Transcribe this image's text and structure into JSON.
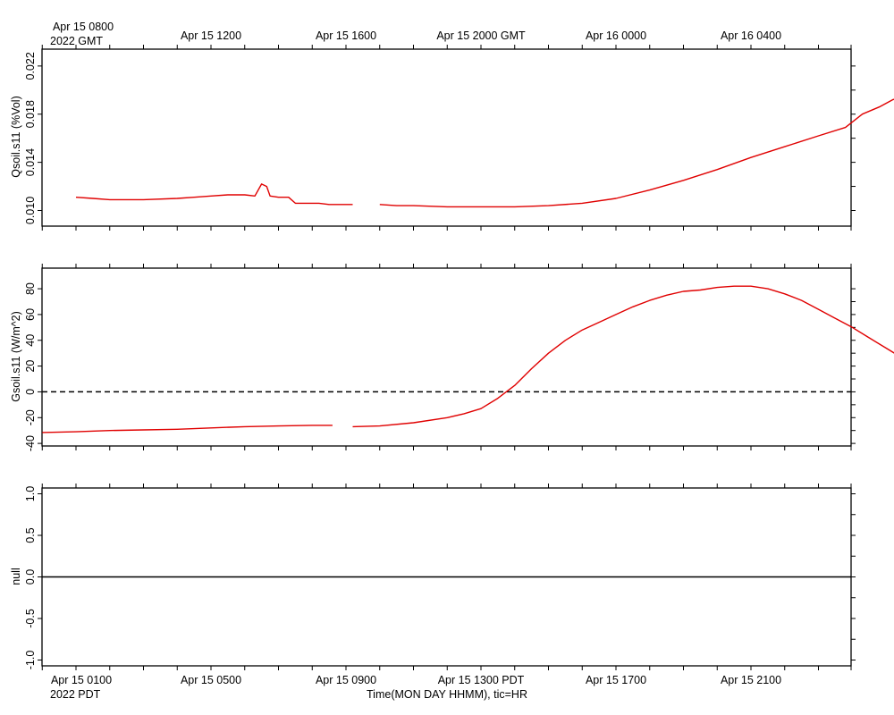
{
  "top_axis": {
    "tick_labels": [
      "Apr 15 0800",
      "Apr 15 1200",
      "Apr 15 1600",
      "Apr 15 2000 GMT",
      "Apr 16 0000",
      "Apr 16 0400"
    ],
    "corner_label": "2022 GMT"
  },
  "bottom_axis": {
    "tick_labels": [
      "Apr 15 0100",
      "Apr 15 0500",
      "Apr 15 0900",
      "Apr 15 1300 PDT",
      "Apr 15 1700",
      "Apr 15 2100"
    ],
    "corner_label": "2022 PDT",
    "title": "Time(MON DAY HHMM), tic=HR"
  },
  "colors": {
    "series": "#e00000",
    "axis": "#000000",
    "zero_line": "#000000"
  },
  "chart_data": [
    {
      "type": "line",
      "ylabel": "Qsoil.s11 (%Vol)",
      "ylim": [
        0.0087,
        0.0234
      ],
      "yticks": [
        0.01,
        0.014,
        0.018,
        0.022
      ],
      "ytick_labels": [
        "0.010",
        "0.014",
        "0.018",
        "0.022"
      ],
      "xlim_pdt_hours": [
        0.0,
        23.8
      ],
      "segments": [
        [
          [
            0.0,
            0.0111
          ],
          [
            0.5,
            0.011
          ],
          [
            1.0,
            0.0109
          ],
          [
            2.0,
            0.0109
          ],
          [
            3.0,
            0.011
          ],
          [
            3.5,
            0.0111
          ],
          [
            4.0,
            0.0112
          ],
          [
            4.5,
            0.0113
          ],
          [
            5.0,
            0.0113
          ],
          [
            5.3,
            0.0112
          ],
          [
            5.5,
            0.0122
          ],
          [
            5.65,
            0.012
          ],
          [
            5.75,
            0.0112
          ],
          [
            6.0,
            0.0111
          ],
          [
            6.3,
            0.0111
          ],
          [
            6.5,
            0.0106
          ],
          [
            7.0,
            0.0106
          ],
          [
            7.2,
            0.0106
          ],
          [
            7.5,
            0.0105
          ],
          [
            8.0,
            0.0105
          ],
          [
            8.2,
            0.0105
          ]
        ],
        [
          [
            9.0,
            0.0105
          ],
          [
            9.5,
            0.0104
          ],
          [
            10.0,
            0.0104
          ],
          [
            11.0,
            0.0103
          ],
          [
            12.0,
            0.0103
          ],
          [
            13.0,
            0.0103
          ],
          [
            14.0,
            0.0104
          ],
          [
            15.0,
            0.0106
          ],
          [
            16.0,
            0.011
          ],
          [
            17.0,
            0.0117
          ],
          [
            18.0,
            0.0125
          ],
          [
            19.0,
            0.0134
          ],
          [
            20.0,
            0.0144
          ],
          [
            21.0,
            0.0153
          ],
          [
            22.0,
            0.0162
          ],
          [
            22.8,
            0.0169
          ],
          [
            23.3,
            0.018
          ],
          [
            23.8,
            0.0186
          ],
          [
            24.2,
            0.0192
          ],
          [
            24.8,
            0.0197
          ],
          [
            25.1,
            0.02
          ],
          [
            25.4,
            0.0196
          ],
          [
            25.7,
            0.0205
          ],
          [
            25.9,
            0.0192
          ],
          [
            26.2,
            0.0208
          ],
          [
            26.5,
            0.0209
          ],
          [
            26.8,
            0.0209
          ],
          [
            27.0,
            0.0193
          ],
          [
            27.3,
            0.0189
          ],
          [
            27.6,
            0.0188
          ],
          [
            28.0,
            0.0189
          ],
          [
            28.6,
            0.0185
          ],
          [
            29.0,
            0.0187
          ],
          [
            29.3,
            0.0189
          ],
          [
            29.6,
            0.0195
          ],
          [
            29.75,
            0.0185
          ],
          [
            30.0,
            0.0197
          ],
          [
            30.5,
            0.0192
          ],
          [
            30.8,
            0.0185
          ],
          [
            31.4,
            0.0181
          ],
          [
            31.6,
            0.0187
          ],
          [
            31.75,
            0.0214
          ],
          [
            31.85,
            0.0152
          ],
          [
            32.0,
            0.02
          ],
          [
            32.15,
            0.0151
          ],
          [
            32.3,
            0.0164
          ],
          [
            32.45,
            0.0147
          ],
          [
            32.6,
            0.0213
          ],
          [
            32.75,
            0.0226
          ],
          [
            32.9,
            0.0138
          ],
          [
            33.2,
            0.0135
          ],
          [
            33.5,
            0.0138
          ],
          [
            33.7,
            0.0133
          ],
          [
            33.9,
            0.0145
          ],
          [
            34.05,
            0.0168
          ],
          [
            34.2,
            0.0158
          ],
          [
            34.35,
            0.0174
          ],
          [
            34.5,
            0.0168
          ],
          [
            34.6,
            0.0122
          ],
          [
            34.7,
            0.0117
          ],
          [
            35.0,
            0.0115
          ],
          [
            35.5,
            0.0114
          ],
          [
            36.0,
            0.0111
          ],
          [
            36.5,
            0.0109
          ],
          [
            37.0,
            0.0107
          ],
          [
            37.5,
            0.0106
          ],
          [
            38.0,
            0.0105
          ],
          [
            38.5,
            0.0103
          ],
          [
            38.6,
            0.0104
          ],
          [
            39.0,
            0.0103
          ],
          [
            39.5,
            0.0101
          ],
          [
            40.0,
            0.01
          ],
          [
            40.5,
            0.0099
          ],
          [
            41.0,
            0.0099
          ],
          [
            41.5,
            0.0098
          ],
          [
            42.0,
            0.0098
          ],
          [
            43.0,
            0.0098
          ],
          [
            44.0,
            0.0097
          ]
        ]
      ]
    },
    {
      "type": "line",
      "ylabel": "Gsoil.s11 (W/m^2)",
      "ylim": [
        -42,
        96
      ],
      "yticks": [
        -40,
        -20,
        0,
        20,
        40,
        60,
        80
      ],
      "ytick_labels": [
        "-40",
        "-20",
        "0",
        "20",
        "40",
        "60",
        "80"
      ],
      "reference_line": {
        "y": 0,
        "style": "dashed"
      },
      "segments": [
        [
          [
            -1.0,
            -31.5
          ],
          [
            0,
            -31
          ],
          [
            1,
            -30
          ],
          [
            2,
            -29.5
          ],
          [
            3,
            -29
          ],
          [
            4,
            -28
          ],
          [
            5,
            -27
          ],
          [
            6,
            -26.5
          ],
          [
            7,
            -26
          ],
          [
            7.6,
            -26
          ]
        ],
        [
          [
            8.2,
            -27
          ],
          [
            9,
            -26.5
          ],
          [
            10,
            -24
          ],
          [
            11,
            -20
          ],
          [
            11.5,
            -17
          ],
          [
            12,
            -13
          ],
          [
            12.5,
            -5
          ],
          [
            13,
            5
          ],
          [
            13.5,
            18
          ],
          [
            14,
            30
          ],
          [
            14.5,
            40
          ],
          [
            15,
            48
          ],
          [
            15.5,
            54
          ],
          [
            16,
            60
          ],
          [
            16.5,
            66
          ],
          [
            17,
            71
          ],
          [
            17.5,
            75
          ],
          [
            18,
            78
          ],
          [
            18.5,
            79
          ],
          [
            19,
            81
          ],
          [
            19.5,
            82
          ],
          [
            20,
            82
          ],
          [
            20.5,
            80
          ],
          [
            21,
            76
          ],
          [
            21.5,
            71
          ],
          [
            22,
            64
          ],
          [
            22.5,
            57
          ],
          [
            23,
            50
          ],
          [
            23.5,
            42
          ],
          [
            24,
            34
          ],
          [
            24.5,
            26
          ],
          [
            25,
            19
          ],
          [
            25.5,
            13
          ],
          [
            26,
            8
          ],
          [
            26.5,
            3
          ],
          [
            27,
            -2
          ],
          [
            27.5,
            -8
          ],
          [
            28,
            -13
          ],
          [
            28.5,
            -17
          ],
          [
            29,
            -20
          ],
          [
            29.5,
            -22
          ],
          [
            30,
            -23
          ],
          [
            30.5,
            -24
          ],
          [
            31,
            -25
          ],
          [
            31.5,
            -25.5
          ],
          [
            32,
            -25.5
          ],
          [
            32.5,
            -25.5
          ]
        ]
      ]
    },
    {
      "type": "line",
      "ylabel": "null",
      "ylim": [
        -1.07,
        1.07
      ],
      "yticks": [
        -1.0,
        -0.5,
        0.0,
        0.5,
        1.0
      ],
      "ytick_labels": [
        "-1.0",
        "-0.5",
        "0.0",
        "0.5",
        "1.0"
      ],
      "reference_line": {
        "y": 0,
        "style": "solid"
      },
      "segments": []
    }
  ]
}
